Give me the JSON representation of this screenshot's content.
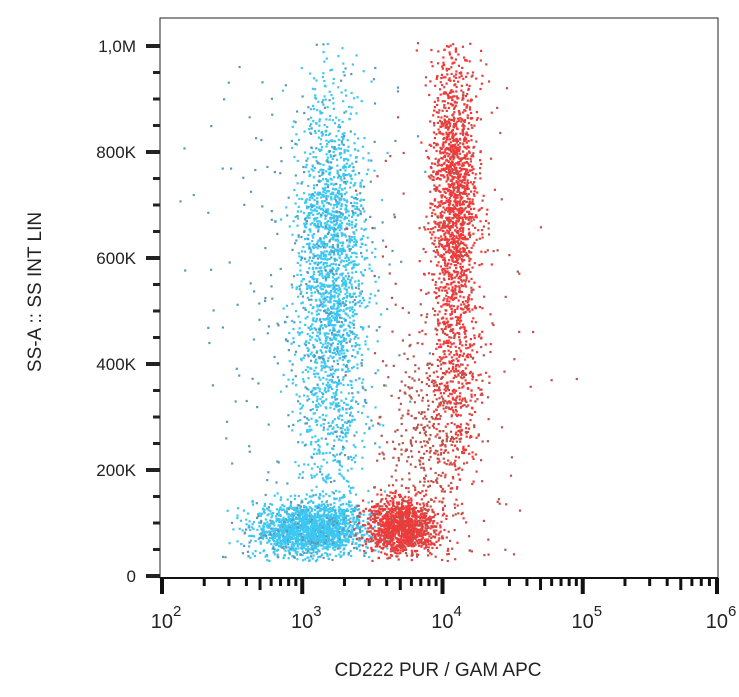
{
  "chart_data": {
    "type": "scatter",
    "title": "",
    "xlabel": "CD222 PUR / GAM APC",
    "ylabel": "SS-A :: SS INT LIN",
    "x_scale": "log",
    "xlim": [
      100,
      1000000
    ],
    "ylim": [
      0,
      1050000
    ],
    "x_ticks": [
      {
        "base": "10",
        "exp": "2",
        "value": 100
      },
      {
        "base": "10",
        "exp": "3",
        "value": 1000
      },
      {
        "base": "10",
        "exp": "4",
        "value": 10000
      },
      {
        "base": "10",
        "exp": "5",
        "value": 100000
      },
      {
        "base": "10",
        "exp": "6",
        "value": 1000000
      }
    ],
    "y_ticks": [
      {
        "label": "0",
        "value": 0
      },
      {
        "label": "200K",
        "value": 200000
      },
      {
        "label": "400K",
        "value": 400000
      },
      {
        "label": "600K",
        "value": 600000
      },
      {
        "label": "800K",
        "value": 800000
      },
      {
        "label": "1,0M",
        "value": 1000000
      }
    ],
    "grid": false,
    "series": [
      {
        "color": "#3cc8f2",
        "sparse_color": "#5a9ab8",
        "populations": [
          {
            "x_center": 1150,
            "x_spread_decades": 0.2,
            "y_center": 90000,
            "y_spread": 25000,
            "events": 1800
          },
          {
            "x_center": 1600,
            "x_spread_decades": 0.12,
            "y_center": 620000,
            "y_spread": 150000,
            "events": 1500
          },
          {
            "x_center": 1600,
            "x_spread_decades": 0.13,
            "y_center": 350000,
            "y_spread": 150000,
            "events": 600
          },
          {
            "x_center": 1000,
            "x_spread_decades": 0.35,
            "y_center": 500000,
            "y_spread": 300000,
            "events": 250
          }
        ]
      },
      {
        "color": "#f03a3a",
        "sparse_color": "#b8544a",
        "populations": [
          {
            "x_center": 5000,
            "x_spread_decades": 0.12,
            "y_center": 95000,
            "y_spread": 25000,
            "events": 1200
          },
          {
            "x_center": 12000,
            "x_spread_decades": 0.08,
            "y_center": 720000,
            "y_spread": 130000,
            "events": 1500
          },
          {
            "x_center": 12000,
            "x_spread_decades": 0.1,
            "y_center": 380000,
            "y_spread": 120000,
            "events": 500
          },
          {
            "x_center": 7000,
            "x_spread_decades": 0.15,
            "y_center": 250000,
            "y_spread": 100000,
            "events": 300
          },
          {
            "x_center": 12500,
            "x_spread_decades": 0.3,
            "y_center": 500000,
            "y_spread": 300000,
            "events": 200
          }
        ]
      }
    ]
  }
}
